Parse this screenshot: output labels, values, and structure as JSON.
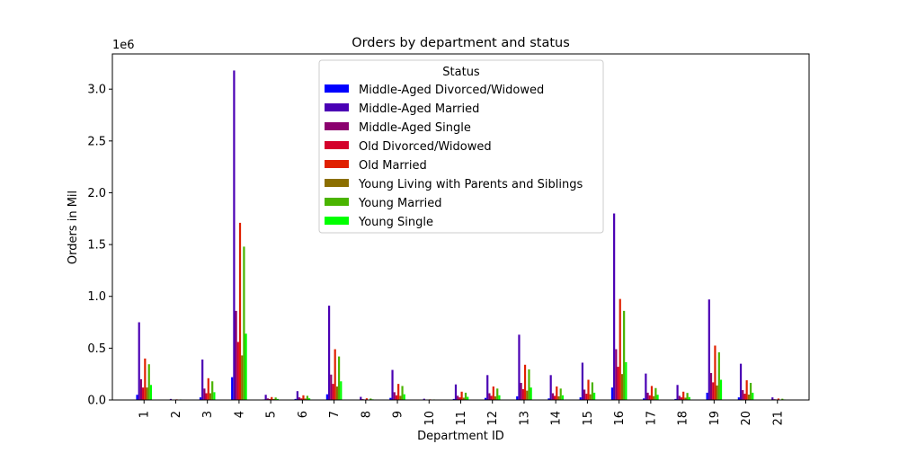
{
  "chart_data": {
    "type": "bar",
    "title": "Orders by department and status",
    "xlabel": "Department ID",
    "ylabel": "Orders in Mil",
    "y_offset_label": "1e6",
    "ylim": [
      0,
      3340000
    ],
    "y_ticks": [
      0,
      500000,
      1000000,
      1500000,
      2000000,
      2500000,
      3000000
    ],
    "y_tick_labels": [
      "0.0",
      "0.5",
      "1.0",
      "1.5",
      "2.0",
      "2.5",
      "3.0"
    ],
    "grid": false,
    "legend_title": "Status",
    "legend_position": "top-center",
    "categories": [
      "1",
      "2",
      "3",
      "4",
      "5",
      "6",
      "7",
      "8",
      "9",
      "10",
      "11",
      "12",
      "13",
      "14",
      "15",
      "16",
      "17",
      "18",
      "19",
      "20",
      "21"
    ],
    "series": [
      {
        "name": "Middle-Aged Divorced/Widowed",
        "color": "#0000ff",
        "values": [
          50000,
          2000,
          25000,
          220000,
          5000,
          10000,
          55000,
          2000,
          20000,
          1000,
          10000,
          20000,
          35000,
          15000,
          25000,
          120000,
          15000,
          10000,
          70000,
          25000,
          1000
        ]
      },
      {
        "name": "Middle-Aged Married",
        "color": "#4a00b4",
        "values": [
          750000,
          10000,
          390000,
          3180000,
          50000,
          85000,
          910000,
          30000,
          290000,
          12000,
          150000,
          240000,
          630000,
          240000,
          360000,
          1800000,
          255000,
          145000,
          970000,
          350000,
          25000
        ]
      },
      {
        "name": "Middle-Aged Single",
        "color": "#8b006e",
        "values": [
          200000,
          3000,
          110000,
          860000,
          15000,
          25000,
          245000,
          8000,
          75000,
          3000,
          40000,
          65000,
          165000,
          65000,
          100000,
          490000,
          70000,
          40000,
          260000,
          95000,
          7000
        ]
      },
      {
        "name": "Old Divorced/Widowed",
        "color": "#d4002a",
        "values": [
          120000,
          2000,
          65000,
          560000,
          10000,
          15000,
          155000,
          5000,
          45000,
          2000,
          25000,
          40000,
          105000,
          40000,
          60000,
          320000,
          45000,
          25000,
          170000,
          60000,
          5000
        ]
      },
      {
        "name": "Old Married",
        "color": "#e02000",
        "values": [
          400000,
          6000,
          210000,
          1710000,
          28000,
          45000,
          490000,
          16000,
          155000,
          6000,
          80000,
          130000,
          340000,
          130000,
          195000,
          975000,
          135000,
          80000,
          525000,
          190000,
          14000
        ]
      },
      {
        "name": "Young Living with Parents and Siblings",
        "color": "#8b6e00",
        "values": [
          120000,
          2000,
          65000,
          430000,
          9000,
          14000,
          130000,
          4000,
          40000,
          2000,
          22000,
          35000,
          90000,
          35000,
          55000,
          250000,
          37000,
          22000,
          140000,
          52000,
          4000
        ]
      },
      {
        "name": "Young Married",
        "color": "#4ab400",
        "values": [
          345000,
          5000,
          180000,
          1480000,
          24000,
          40000,
          420000,
          14000,
          135000,
          5000,
          70000,
          110000,
          295000,
          110000,
          170000,
          860000,
          115000,
          68000,
          460000,
          165000,
          12000
        ]
      },
      {
        "name": "Young Single",
        "color": "#00ff00",
        "values": [
          145000,
          2500,
          75000,
          640000,
          10000,
          16000,
          180000,
          6000,
          55000,
          2000,
          30000,
          45000,
          120000,
          45000,
          70000,
          365000,
          50000,
          28000,
          195000,
          70000,
          5000
        ]
      }
    ]
  }
}
